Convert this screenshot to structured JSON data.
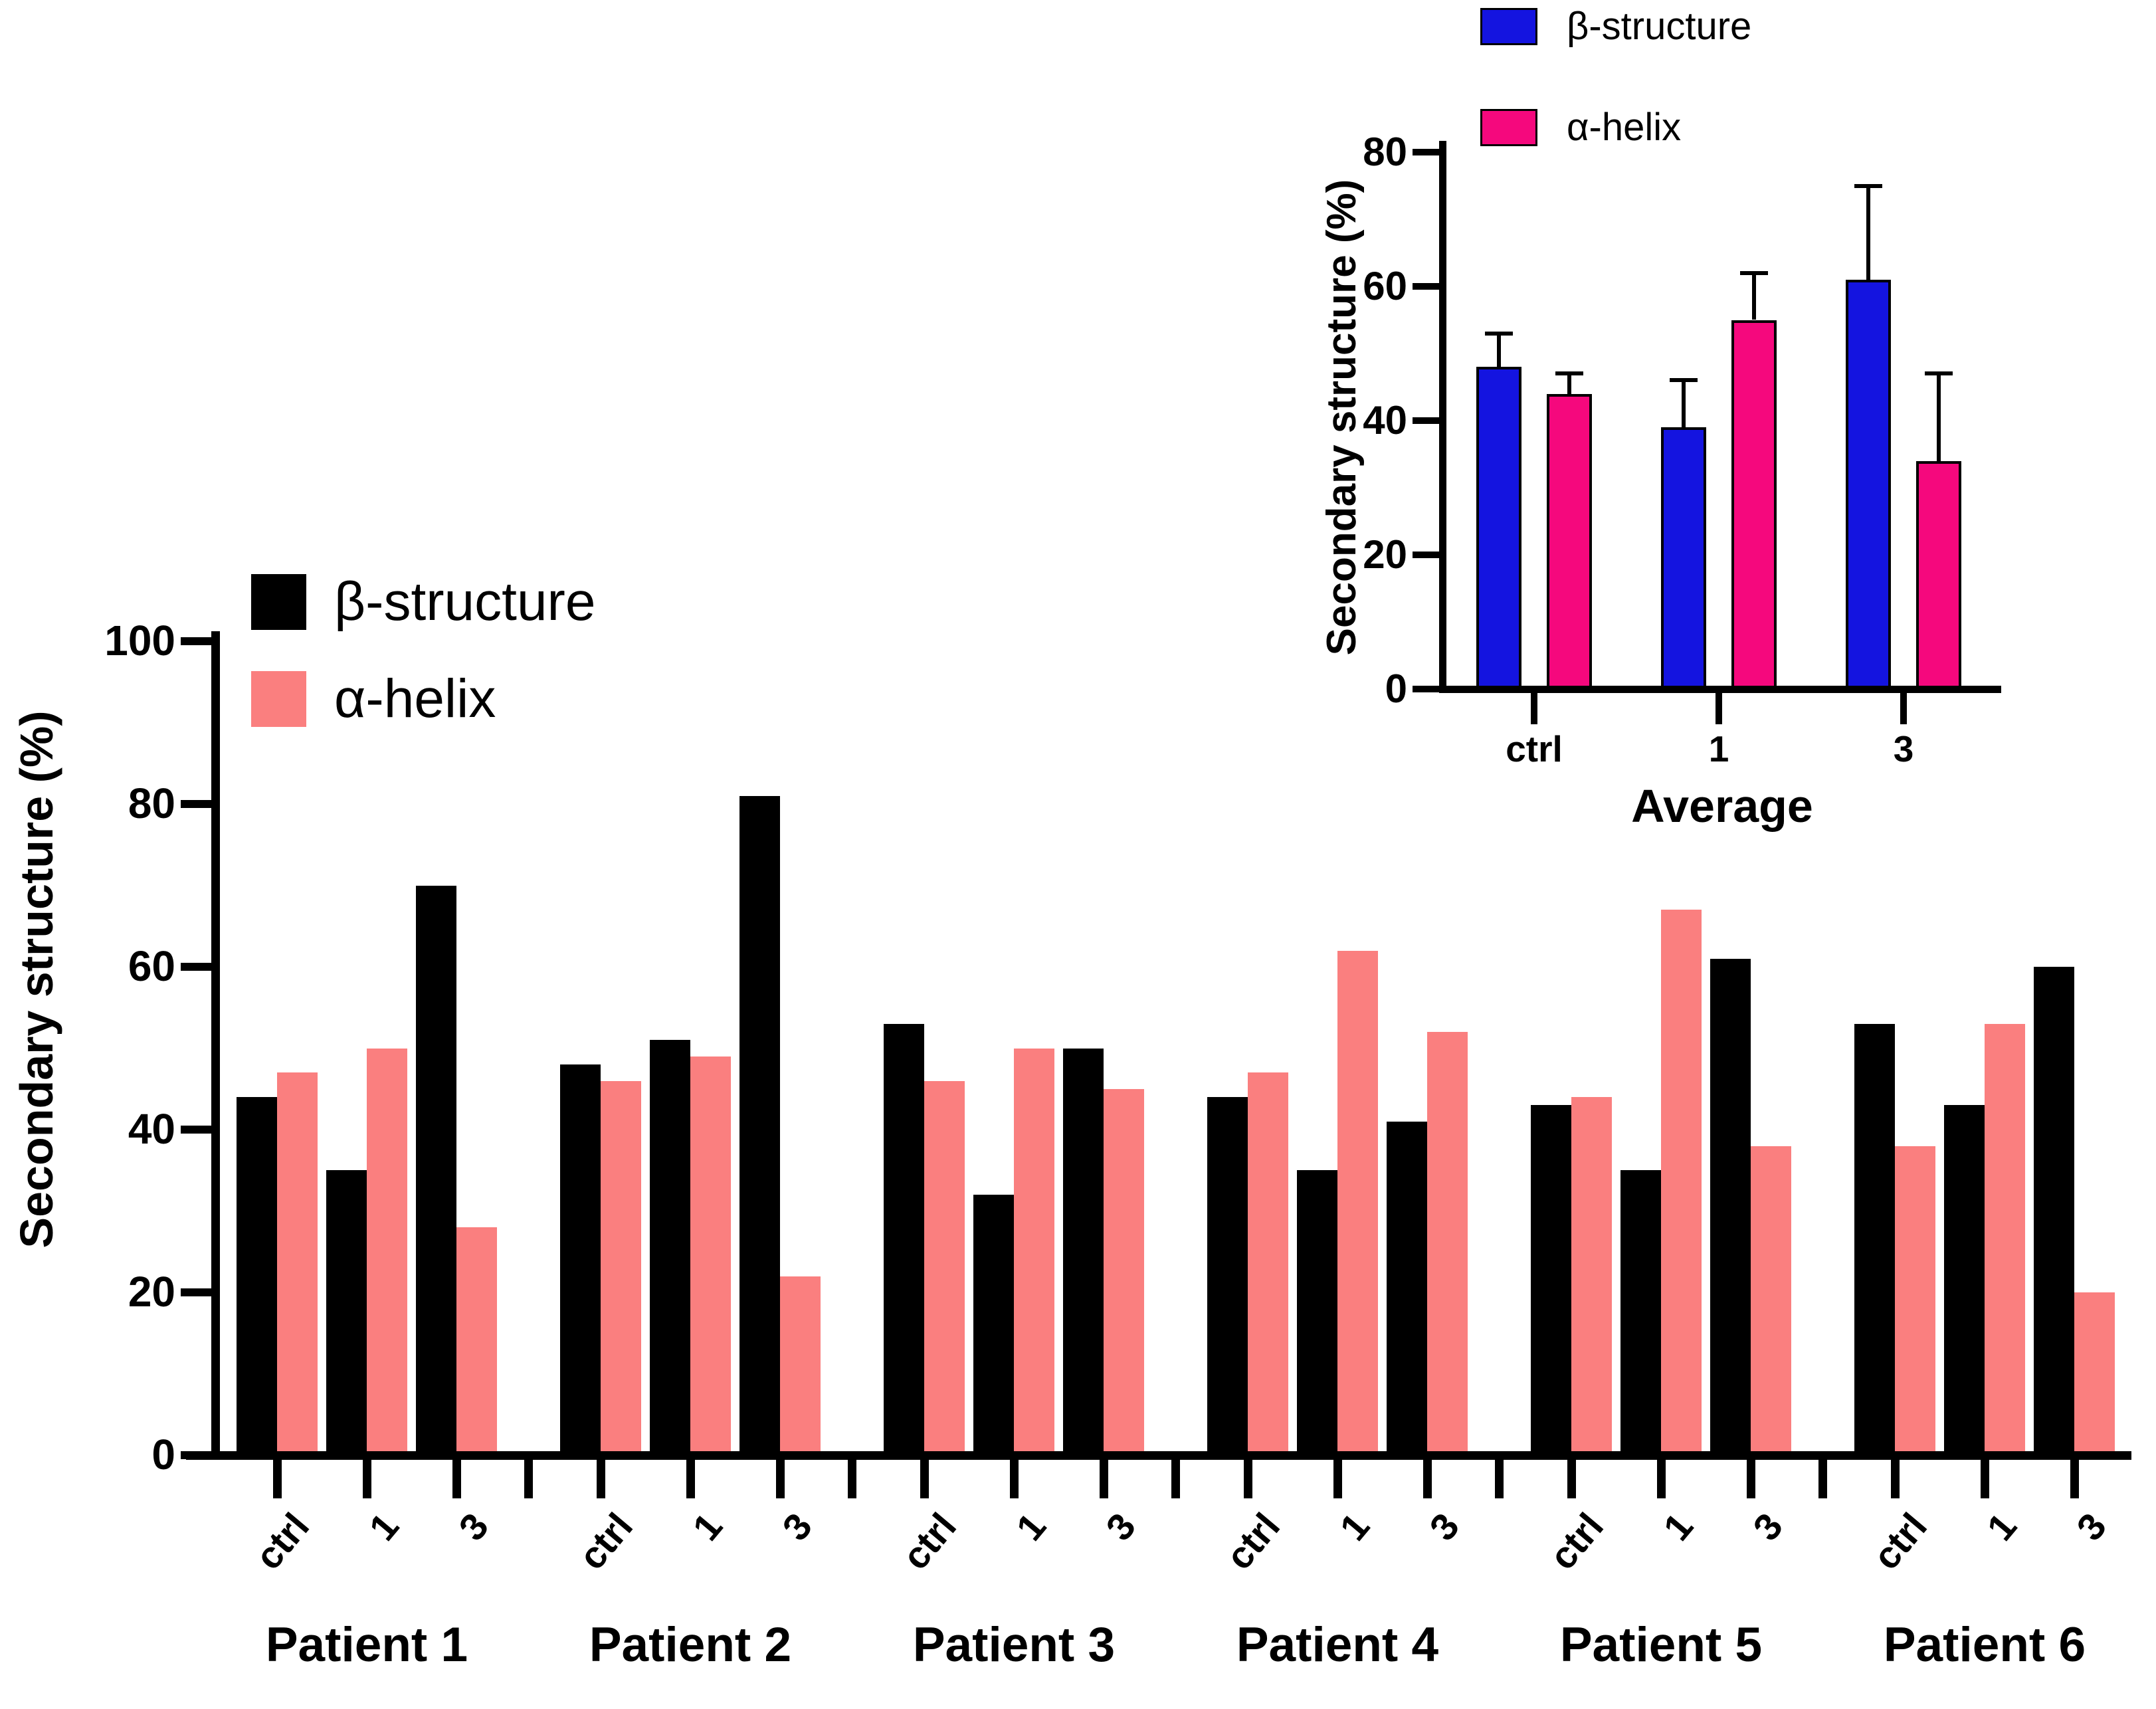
{
  "figure": {
    "background": "#ffffff",
    "description_colors": {
      "main_beta": "#000000",
      "main_alpha": "#FA7F7F",
      "inset_beta": "#1414E0",
      "inset_alpha": "#F5087D",
      "axis": "#000000"
    }
  },
  "chart_data": [
    {
      "id": "patients-chart",
      "type": "bar",
      "title": "",
      "ylabel": "Secondary structure (%)",
      "xlabel": "",
      "ylim": [
        0,
        100
      ],
      "yticks": [
        0,
        20,
        40,
        60,
        80,
        100
      ],
      "grid": "off",
      "legend_position": "top-left-inside",
      "categories": [
        "ctrl",
        "1",
        "3"
      ],
      "series_legend": [
        {
          "label": "β-structure",
          "color": "#000000"
        },
        {
          "label": "α-helix",
          "color": "#FA7F7F"
        }
      ],
      "groups": [
        {
          "label": "Patient 1",
          "beta": [
            44,
            35,
            70
          ],
          "alpha": [
            47,
            50,
            28
          ]
        },
        {
          "label": "Patient 2",
          "beta": [
            48,
            51,
            81
          ],
          "alpha": [
            46,
            49,
            22
          ]
        },
        {
          "label": "Patient 3",
          "beta": [
            53,
            32,
            50
          ],
          "alpha": [
            46,
            50,
            45
          ]
        },
        {
          "label": "Patient 4",
          "beta": [
            44,
            35,
            41
          ],
          "alpha": [
            47,
            62,
            52
          ]
        },
        {
          "label": "Patient 5",
          "beta": [
            43,
            35,
            61
          ],
          "alpha": [
            44,
            67,
            38
          ]
        },
        {
          "label": "Patient 6",
          "beta": [
            53,
            43,
            60
          ],
          "alpha": [
            38,
            53,
            20
          ]
        }
      ]
    },
    {
      "id": "average-chart",
      "type": "bar",
      "title": "",
      "ylabel": "Secondary structure (%)",
      "xlabel": "Average",
      "ylim": [
        0,
        80
      ],
      "yticks": [
        0,
        20,
        40,
        60,
        80
      ],
      "grid": "off",
      "legend_position": "top-left-above",
      "categories": [
        "ctrl",
        "1",
        "3"
      ],
      "legend": [
        {
          "label": "β-structure",
          "color": "#1414E0"
        },
        {
          "label": "α-helix",
          "color": "#F5087D"
        }
      ],
      "series": [
        {
          "name": "β-structure",
          "color": "#1414E0",
          "values": [
            48,
            39,
            61
          ],
          "errors": [
            5,
            7,
            14
          ]
        },
        {
          "name": "α-helix",
          "color": "#F5087D",
          "values": [
            44,
            55,
            34
          ],
          "errors": [
            3,
            7,
            13
          ]
        }
      ]
    }
  ]
}
